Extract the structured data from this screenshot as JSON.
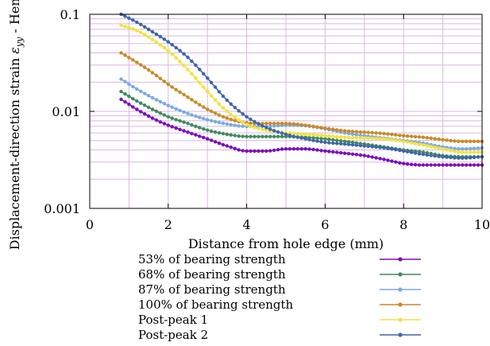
{
  "chart_data": {
    "type": "line",
    "xlabel": "Distance from hole edge (mm)",
    "ylabel_prefix": "Displacement-direction strain ",
    "ylabel_symbol": "ε",
    "ylabel_subscript": "yy",
    "ylabel_suffix": " - Hencky",
    "xlim": [
      0,
      10
    ],
    "ylim": [
      0.001,
      0.1
    ],
    "yscale": "log",
    "grid": true,
    "legend_position": "below",
    "x_ticks": [
      0,
      2,
      4,
      6,
      8,
      10
    ],
    "x_tick_labels": [
      "0",
      "2",
      "4",
      "6",
      "8",
      "10"
    ],
    "y_ticks": [
      0.001,
      0.01,
      0.1
    ],
    "y_tick_labels": [
      "0.001",
      "0.01",
      "0.1"
    ],
    "series": [
      {
        "name": "53% of bearing strength",
        "color": "#7b0fb8",
        "x": [
          0.8,
          1.2,
          1.6,
          2.0,
          2.5,
          3.0,
          3.5,
          4.0,
          4.5,
          5.0,
          5.5,
          6.0,
          6.5,
          7.0,
          7.5,
          8.0,
          8.5,
          9.0,
          9.5,
          10.0
        ],
        "y": [
          0.0133,
          0.0105,
          0.0085,
          0.0072,
          0.0061,
          0.0052,
          0.0044,
          0.0039,
          0.0039,
          0.0041,
          0.0041,
          0.0039,
          0.0037,
          0.0035,
          0.0032,
          0.0029,
          0.0028,
          0.0028,
          0.0028,
          0.0028
        ]
      },
      {
        "name": "68% of bearing strength",
        "color": "#3f8b5a",
        "x": [
          0.8,
          1.2,
          1.6,
          2.0,
          2.5,
          3.0,
          3.5,
          4.0,
          4.5,
          5.0,
          5.5,
          6.0,
          6.5,
          7.0,
          7.5,
          8.0,
          8.5,
          9.0,
          9.5,
          10.0
        ],
        "y": [
          0.016,
          0.0128,
          0.0105,
          0.0088,
          0.0075,
          0.0064,
          0.0058,
          0.0055,
          0.0055,
          0.0055,
          0.0054,
          0.0052,
          0.0049,
          0.0046,
          0.0043,
          0.004,
          0.0038,
          0.0035,
          0.0034,
          0.0034
        ]
      },
      {
        "name": "87% of bearing strength",
        "color": "#79a9e6",
        "x": [
          0.8,
          1.2,
          1.6,
          2.0,
          2.5,
          3.0,
          3.5,
          4.0,
          4.5,
          5.0,
          5.5,
          6.0,
          6.5,
          7.0,
          7.5,
          8.0,
          8.5,
          9.0,
          9.5,
          10.0
        ],
        "y": [
          0.0215,
          0.017,
          0.0138,
          0.0115,
          0.0095,
          0.0082,
          0.0074,
          0.007,
          0.007,
          0.0072,
          0.0071,
          0.0066,
          0.006,
          0.0056,
          0.0053,
          0.005,
          0.0047,
          0.0043,
          0.0041,
          0.0042
        ]
      },
      {
        "name": "100% of bearing strength",
        "color": "#c98a25",
        "x": [
          0.8,
          1.2,
          1.6,
          2.0,
          2.5,
          3.0,
          3.5,
          4.0,
          4.5,
          5.0,
          5.5,
          6.0,
          6.5,
          7.0,
          7.5,
          8.0,
          8.5,
          9.0,
          9.5,
          10.0
        ],
        "y": [
          0.04,
          0.032,
          0.025,
          0.019,
          0.014,
          0.0105,
          0.0085,
          0.0076,
          0.0075,
          0.0075,
          0.0072,
          0.0067,
          0.0063,
          0.0061,
          0.0059,
          0.0056,
          0.0054,
          0.0051,
          0.0049,
          0.0049
        ]
      },
      {
        "name": "Post-peak 1",
        "color": "#f2e23a",
        "x": [
          0.8,
          1.2,
          1.6,
          2.0,
          2.5,
          3.0,
          3.5,
          4.0,
          4.5,
          5.0,
          5.5,
          6.0,
          6.5,
          7.0,
          7.5,
          8.0,
          8.5,
          9.0,
          9.5,
          10.0
        ],
        "y": [
          0.077,
          0.068,
          0.055,
          0.042,
          0.027,
          0.016,
          0.01,
          0.0073,
          0.0064,
          0.006,
          0.0058,
          0.0056,
          0.0054,
          0.0053,
          0.0052,
          0.0049,
          0.0045,
          0.0041,
          0.0038,
          0.0038
        ]
      },
      {
        "name": "Post-peak 2",
        "color": "#3d66aa",
        "x": [
          0.8,
          1.2,
          1.6,
          2.0,
          2.5,
          3.0,
          3.5,
          4.0,
          4.5,
          5.0,
          5.5,
          6.0,
          6.5,
          7.0,
          7.5,
          8.0,
          8.5,
          9.0,
          9.5,
          10.0
        ],
        "y": [
          0.1,
          0.083,
          0.066,
          0.052,
          0.036,
          0.022,
          0.013,
          0.0088,
          0.0068,
          0.0058,
          0.0052,
          0.0048,
          0.0046,
          0.0044,
          0.0042,
          0.0039,
          0.0036,
          0.0034,
          0.0033,
          0.0034
        ]
      }
    ]
  }
}
